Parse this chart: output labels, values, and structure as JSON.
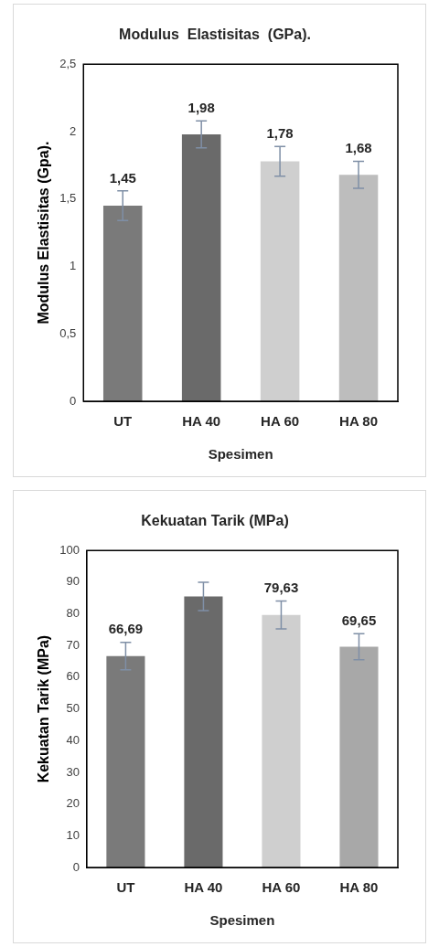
{
  "chart_data": [
    {
      "type": "bar",
      "title": "Modulus  Elastisitas  (GPa).",
      "xlabel": "Spesimen",
      "ylabel": "Modulus Elastisitas (Gpa).",
      "categories": [
        "UT",
        "HA 40",
        "HA 60",
        "HA 80"
      ],
      "values": [
        1.45,
        1.98,
        1.78,
        1.68
      ],
      "errors": [
        0.11,
        0.1,
        0.11,
        0.1
      ],
      "value_labels": [
        "1,45",
        "1,98",
        "1,78",
        "1,68"
      ],
      "colors": [
        "#7a7a7a",
        "#6a6a6a",
        "#cfcfcf",
        "#bdbdbd"
      ],
      "ylim": [
        0,
        2.5
      ],
      "yticks": [
        0,
        {
          "value": 0.5,
          "label": "0,5"
        },
        1,
        {
          "value": 1.5,
          "label": "1,5"
        },
        2,
        {
          "value": 2.5,
          "label": "2,5"
        }
      ],
      "grid": false,
      "legend": false
    },
    {
      "type": "bar",
      "title": "Kekuatan Tarik (MPa)",
      "xlabel": "Spesimen",
      "ylabel": "Kekuatan Tarik (MPa)",
      "categories": [
        "UT",
        "HA 40",
        "HA 60",
        "HA 80"
      ],
      "values": [
        66.69,
        85.5,
        79.63,
        69.65
      ],
      "errors": [
        4.3,
        4.5,
        4.4,
        4.1
      ],
      "value_labels": [
        "66,69",
        null,
        "79,63",
        "69,65"
      ],
      "colors": [
        "#7a7a7a",
        "#6a6a6a",
        "#cfcfcf",
        "#a8a8a8"
      ],
      "ylim": [
        0,
        100
      ],
      "yticks": [
        0,
        10,
        20,
        30,
        40,
        50,
        60,
        70,
        80,
        90,
        100
      ],
      "grid": false,
      "legend": false
    }
  ]
}
